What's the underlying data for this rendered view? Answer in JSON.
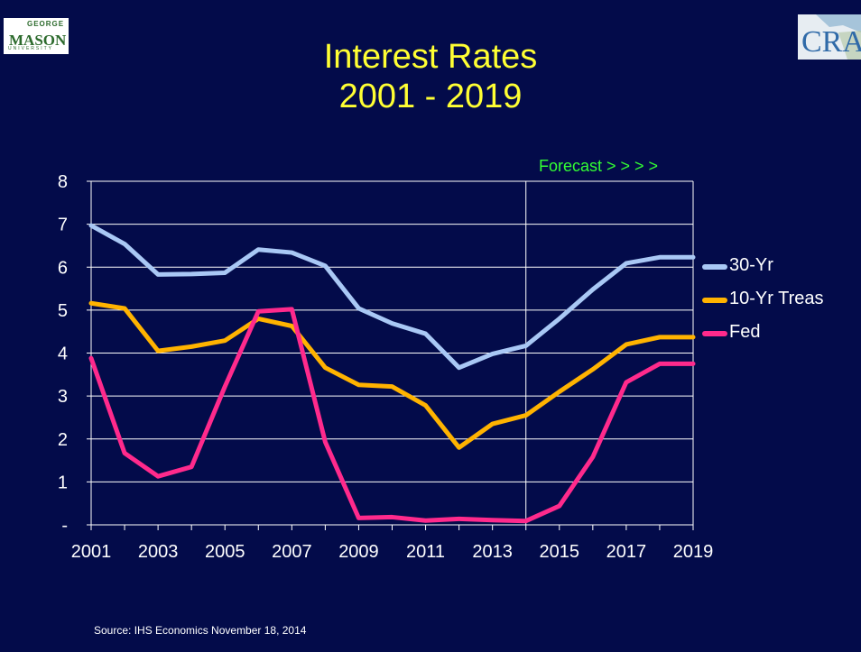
{
  "logos": {
    "left": {
      "small": "GEORGE",
      "main": "MASON",
      "sub": "UNIVERSITY"
    },
    "right": {
      "text": "CRA"
    }
  },
  "title": {
    "line1": "Interest Rates",
    "line2": "2001 - 2019"
  },
  "forecast_label": "Forecast > > > >",
  "source": "Source: IHS Economics November 18, 2014",
  "colors": {
    "background": "#030b4a",
    "title": "#ffff33",
    "forecast": "#33ff33",
    "text": "#ffffff"
  },
  "chart_data": {
    "type": "line",
    "x": [
      2001,
      2002,
      2003,
      2004,
      2005,
      2006,
      2007,
      2008,
      2009,
      2010,
      2011,
      2012,
      2013,
      2014,
      2015,
      2016,
      2017,
      2018,
      2019
    ],
    "x_tick_labels": [
      "2001",
      "2003",
      "2005",
      "2007",
      "2009",
      "2011",
      "2013",
      "2015",
      "2017",
      "2019"
    ],
    "y_tick_labels": [
      "-",
      "1",
      "2",
      "3",
      "4",
      "5",
      "6",
      "7",
      "8"
    ],
    "ylim": [
      0,
      8
    ],
    "xlim": [
      2001,
      2019
    ],
    "grid": "horizontal",
    "forecast_start": 2014,
    "legend_position": "right",
    "title": "Interest Rates 2001 - 2019",
    "series": [
      {
        "name": "30-Yr",
        "color": "#a9c8f5",
        "values": [
          6.97,
          6.54,
          5.83,
          5.84,
          5.87,
          6.41,
          6.34,
          6.03,
          5.04,
          4.69,
          4.45,
          3.66,
          3.98,
          4.17,
          4.8,
          5.48,
          6.09,
          6.23,
          6.23
        ]
      },
      {
        "name": "10-Yr Treas",
        "color": "#ffb300",
        "values": [
          5.16,
          5.04,
          4.05,
          4.15,
          4.29,
          4.8,
          4.63,
          3.66,
          3.26,
          3.22,
          2.78,
          1.8,
          2.35,
          2.55,
          3.1,
          3.62,
          4.2,
          4.37,
          4.37
        ]
      },
      {
        "name": "Fed",
        "color": "#ff2a8c",
        "values": [
          3.88,
          1.67,
          1.13,
          1.35,
          3.22,
          4.97,
          5.02,
          1.93,
          0.16,
          0.18,
          0.1,
          0.14,
          0.11,
          0.09,
          0.44,
          1.58,
          3.32,
          3.75,
          3.75
        ]
      }
    ]
  }
}
